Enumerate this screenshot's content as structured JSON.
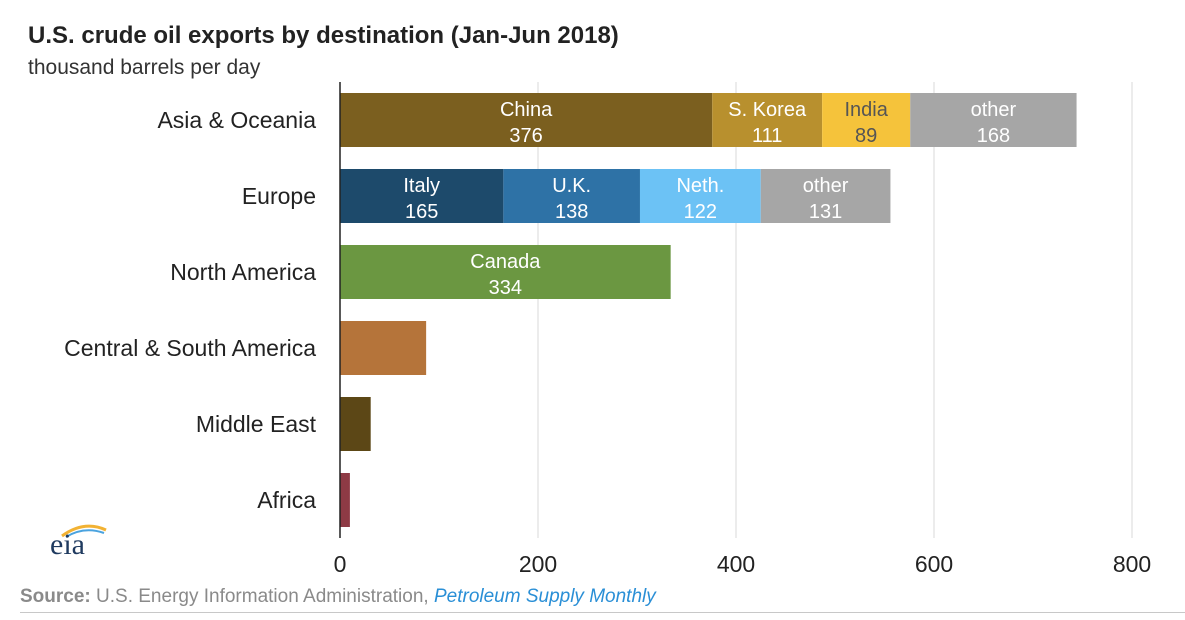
{
  "chart_data": {
    "type": "bar",
    "orientation": "horizontal",
    "stacked": true,
    "title": "U.S. crude oil exports by destination (Jan-Jun 2018)",
    "subtitle": "thousand barrels per day",
    "xlim": [
      0,
      800
    ],
    "xticks": [
      0,
      200,
      400,
      600,
      800
    ],
    "grid": true,
    "categories": [
      "Asia & Oceania",
      "Europe",
      "North America",
      "Central & South America",
      "Middle East",
      "Africa"
    ],
    "bars": [
      {
        "category": "Asia & Oceania",
        "segments": [
          {
            "label": "China",
            "value": 376,
            "color": "#7b5f1f",
            "text_color": "#ffffff"
          },
          {
            "label": "S. Korea",
            "value": 111,
            "color": "#b8902e",
            "text_color": "#ffffff"
          },
          {
            "label": "India",
            "value": 89,
            "color": "#f5c33b",
            "text_color": "#555555"
          },
          {
            "label": "other",
            "value": 168,
            "color": "#a6a6a6",
            "text_color": "#ffffff"
          }
        ]
      },
      {
        "category": "Europe",
        "segments": [
          {
            "label": "Italy",
            "value": 165,
            "color": "#1d4a6b",
            "text_color": "#ffffff"
          },
          {
            "label": "U.K.",
            "value": 138,
            "color": "#2e72a6",
            "text_color": "#ffffff"
          },
          {
            "label": "Neth.",
            "value": 122,
            "color": "#6cc2f5",
            "text_color": "#ffffff"
          },
          {
            "label": "other",
            "value": 131,
            "color": "#a6a6a6",
            "text_color": "#ffffff"
          }
        ]
      },
      {
        "category": "North America",
        "segments": [
          {
            "label": "Canada",
            "value": 334,
            "color": "#6b9741",
            "text_color": "#ffffff"
          }
        ]
      },
      {
        "category": "Central & South America",
        "segments": [
          {
            "label": "",
            "value": 87,
            "color": "#b5743a",
            "text_color": "#ffffff"
          }
        ]
      },
      {
        "category": "Middle East",
        "segments": [
          {
            "label": "",
            "value": 31,
            "color": "#5c4716",
            "text_color": "#ffffff"
          }
        ]
      },
      {
        "category": "Africa",
        "segments": [
          {
            "label": "",
            "value": 10,
            "color": "#8e3a45",
            "text_color": "#ffffff"
          }
        ]
      }
    ]
  },
  "logo_text": "eia",
  "source": {
    "label": "Source:",
    "text": " U.S. Energy Information Administration, ",
    "publication": "Petroleum Supply Monthly"
  }
}
